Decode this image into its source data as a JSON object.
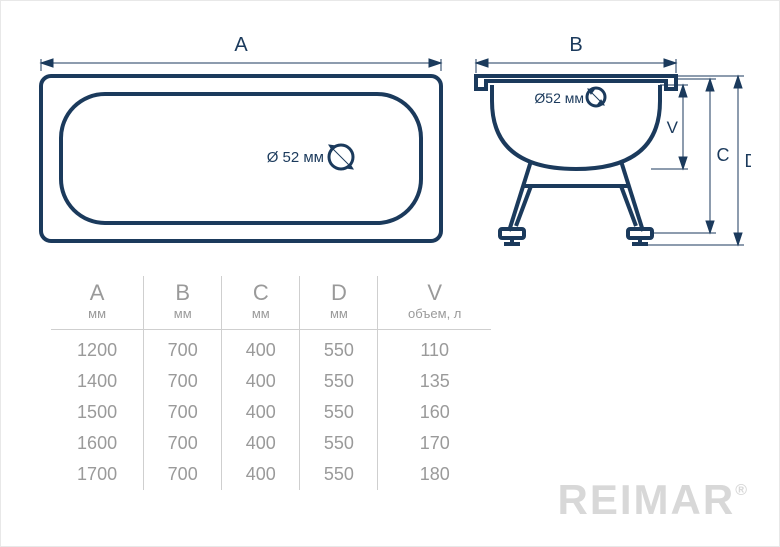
{
  "colors": {
    "stroke": "#1b3a5c",
    "stroke_dark": "#193753",
    "text_dim": "#9a9a9a",
    "divider": "#cfcfcf",
    "bg": "#ffffff",
    "brand": "#d8d8d8"
  },
  "diagram": {
    "top_view": {
      "label_A": "A",
      "drain_label": "Ø 52 мм",
      "drain_diameter_mm": 52
    },
    "side_view": {
      "label_B": "B",
      "label_C": "C",
      "label_D": "D",
      "label_V": "V",
      "drain_label": "Ø52 мм",
      "drain_diameter_mm": 52
    },
    "stroke_width_main": 4,
    "stroke_width_dim": 1,
    "font_size_dim_letter": 20,
    "font_size_label": 15
  },
  "table": {
    "columns": [
      {
        "header": "A",
        "unit": "мм"
      },
      {
        "header": "B",
        "unit": "мм"
      },
      {
        "header": "C",
        "unit": "мм"
      },
      {
        "header": "D",
        "unit": "мм"
      },
      {
        "header": "V",
        "unit": "объем, л"
      }
    ],
    "rows": [
      [
        "1200",
        "700",
        "400",
        "550",
        "110"
      ],
      [
        "1400",
        "700",
        "400",
        "550",
        "135"
      ],
      [
        "1500",
        "700",
        "400",
        "550",
        "160"
      ],
      [
        "1600",
        "700",
        "400",
        "550",
        "170"
      ],
      [
        "1700",
        "700",
        "400",
        "550",
        "180"
      ]
    ]
  },
  "brand": {
    "name": "REIMAR",
    "mark": "®"
  }
}
